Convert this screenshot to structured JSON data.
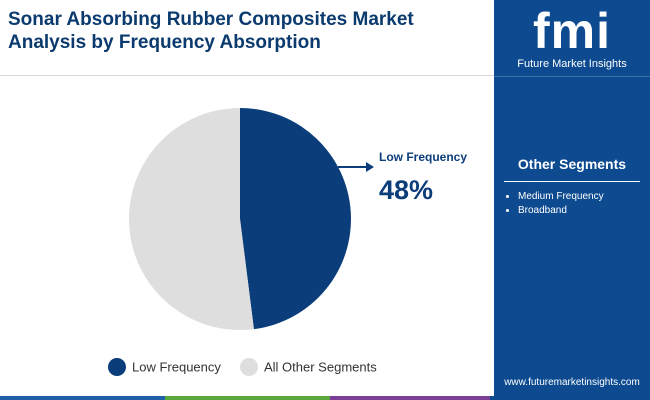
{
  "chart_data": {
    "type": "pie",
    "title": "Sonar Absorbing Rubber Composites Market Analysis by Frequency Absorption",
    "categories": [
      "Low Frequency",
      "All Other Segments"
    ],
    "values": [
      48,
      52
    ],
    "value_labels": [
      "48%",
      null
    ],
    "colors": [
      "#0b3d7a",
      "#dedede"
    ],
    "legend": "bottom"
  },
  "sidebar": {
    "brand": "fmi",
    "brand_name": "Future Market Insights",
    "heading": "Other Segments",
    "items": [
      "Medium Frequency",
      "Broadband"
    ],
    "url": "www.futuremarketinsights.com"
  }
}
